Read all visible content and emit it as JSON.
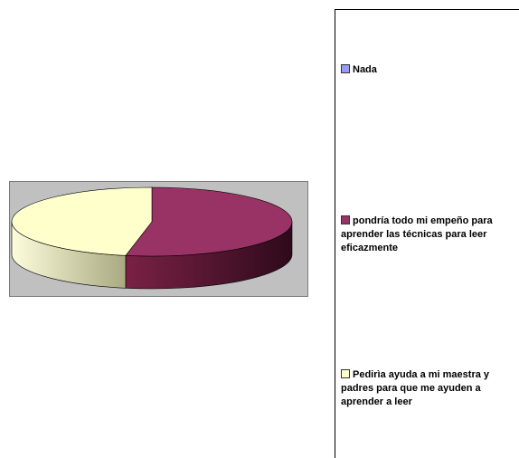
{
  "chart_data": {
    "type": "pie",
    "title": "",
    "categories": [
      "Nada",
      "pondría todo mi empeño para aprender las técnicas para leer eficazmente",
      "Pedirìa ayuda a mi maestra y padres para que me ayuden a aprender a leer"
    ],
    "values": [
      0,
      53,
      47
    ],
    "colors": [
      "#9999ff",
      "#993366",
      "#ffffcc"
    ],
    "legend_position": "right",
    "style": "3d-pie"
  }
}
